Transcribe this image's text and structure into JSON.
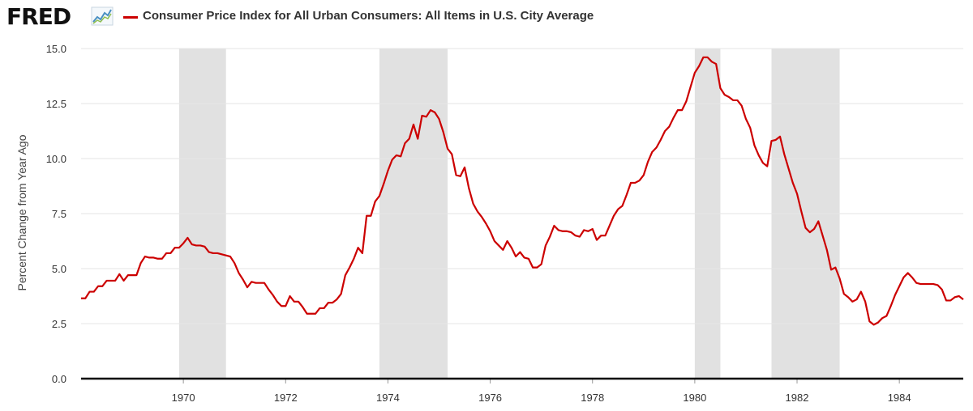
{
  "header": {
    "logo_text": "FRED",
    "logo_icon": "fred-graph-icon"
  },
  "colors": {
    "series": "#cc0000",
    "recession": "#e1e1e1",
    "grid": "#e6e6e6",
    "baseline": "#000000"
  },
  "chart_data": {
    "type": "line",
    "title": "Consumer Price Index for All Urban Consumers: All Items in U.S. City Average",
    "xlabel": "",
    "ylabel": "Percent Change from Year Ago",
    "xlim": [
      "1968-01",
      "1985-04"
    ],
    "ylim": [
      0,
      15
    ],
    "y_ticks": [
      "0.0",
      "2.5",
      "5.0",
      "7.5",
      "10.0",
      "12.5",
      "15.0"
    ],
    "x_ticks": [
      "1970",
      "1972",
      "1974",
      "1976",
      "1978",
      "1980",
      "1982",
      "1984"
    ],
    "grid": true,
    "recessions": [
      [
        "1969-12",
        "1970-11"
      ],
      [
        "1973-11",
        "1975-03"
      ],
      [
        "1980-01",
        "1980-07"
      ],
      [
        "1981-07",
        "1982-11"
      ]
    ],
    "series": [
      {
        "name": "Consumer Price Index for All Urban Consumers: All Items in U.S. City Average",
        "points": [
          [
            "1968-01",
            3.65
          ],
          [
            "1968-02",
            3.65
          ],
          [
            "1968-03",
            3.95
          ],
          [
            "1968-04",
            3.95
          ],
          [
            "1968-05",
            4.2
          ],
          [
            "1968-06",
            4.2
          ],
          [
            "1968-07",
            4.45
          ],
          [
            "1968-08",
            4.45
          ],
          [
            "1968-09",
            4.45
          ],
          [
            "1968-10",
            4.75
          ],
          [
            "1968-11",
            4.45
          ],
          [
            "1968-12",
            4.7
          ],
          [
            "1969-01",
            4.7
          ],
          [
            "1969-02",
            4.7
          ],
          [
            "1969-03",
            5.25
          ],
          [
            "1969-04",
            5.55
          ],
          [
            "1969-05",
            5.5
          ],
          [
            "1969-06",
            5.5
          ],
          [
            "1969-07",
            5.45
          ],
          [
            "1969-08",
            5.45
          ],
          [
            "1969-09",
            5.7
          ],
          [
            "1969-10",
            5.7
          ],
          [
            "1969-11",
            5.95
          ],
          [
            "1969-12",
            5.95
          ],
          [
            "1970-01",
            6.15
          ],
          [
            "1970-02",
            6.4
          ],
          [
            "1970-03",
            6.1
          ],
          [
            "1970-04",
            6.05
          ],
          [
            "1970-05",
            6.05
          ],
          [
            "1970-06",
            6.0
          ],
          [
            "1970-07",
            5.75
          ],
          [
            "1970-08",
            5.7
          ],
          [
            "1970-09",
            5.7
          ],
          [
            "1970-10",
            5.65
          ],
          [
            "1970-11",
            5.6
          ],
          [
            "1970-12",
            5.55
          ],
          [
            "1971-01",
            5.25
          ],
          [
            "1971-02",
            4.8
          ],
          [
            "1971-03",
            4.5
          ],
          [
            "1971-04",
            4.15
          ],
          [
            "1971-05",
            4.4
          ],
          [
            "1971-06",
            4.35
          ],
          [
            "1971-07",
            4.35
          ],
          [
            "1971-08",
            4.35
          ],
          [
            "1971-09",
            4.05
          ],
          [
            "1971-10",
            3.8
          ],
          [
            "1971-11",
            3.5
          ],
          [
            "1971-12",
            3.3
          ],
          [
            "1972-01",
            3.3
          ],
          [
            "1972-02",
            3.75
          ],
          [
            "1972-03",
            3.5
          ],
          [
            "1972-04",
            3.5
          ],
          [
            "1972-05",
            3.25
          ],
          [
            "1972-06",
            2.95
          ],
          [
            "1972-07",
            2.95
          ],
          [
            "1972-08",
            2.95
          ],
          [
            "1972-09",
            3.2
          ],
          [
            "1972-10",
            3.2
          ],
          [
            "1972-11",
            3.45
          ],
          [
            "1972-12",
            3.45
          ],
          [
            "1973-01",
            3.6
          ],
          [
            "1973-02",
            3.85
          ],
          [
            "1973-03",
            4.7
          ],
          [
            "1973-04",
            5.05
          ],
          [
            "1973-05",
            5.45
          ],
          [
            "1973-06",
            5.95
          ],
          [
            "1973-07",
            5.7
          ],
          [
            "1973-08",
            7.4
          ],
          [
            "1973-09",
            7.4
          ],
          [
            "1973-10",
            8.05
          ],
          [
            "1973-11",
            8.3
          ],
          [
            "1973-12",
            8.85
          ],
          [
            "1974-01",
            9.45
          ],
          [
            "1974-02",
            9.95
          ],
          [
            "1974-03",
            10.15
          ],
          [
            "1974-04",
            10.1
          ],
          [
            "1974-05",
            10.7
          ],
          [
            "1974-06",
            10.9
          ],
          [
            "1974-07",
            11.55
          ],
          [
            "1974-08",
            10.9
          ],
          [
            "1974-09",
            11.95
          ],
          [
            "1974-10",
            11.9
          ],
          [
            "1974-11",
            12.2
          ],
          [
            "1974-12",
            12.1
          ],
          [
            "1975-01",
            11.8
          ],
          [
            "1975-02",
            11.2
          ],
          [
            "1975-03",
            10.45
          ],
          [
            "1975-04",
            10.2
          ],
          [
            "1975-05",
            9.25
          ],
          [
            "1975-06",
            9.2
          ],
          [
            "1975-07",
            9.6
          ],
          [
            "1975-08",
            8.65
          ],
          [
            "1975-09",
            7.95
          ],
          [
            "1975-10",
            7.6
          ],
          [
            "1975-11",
            7.35
          ],
          [
            "1975-12",
            7.05
          ],
          [
            "1976-01",
            6.7
          ],
          [
            "1976-02",
            6.25
          ],
          [
            "1976-03",
            6.05
          ],
          [
            "1976-04",
            5.85
          ],
          [
            "1976-05",
            6.25
          ],
          [
            "1976-06",
            5.95
          ],
          [
            "1976-07",
            5.55
          ],
          [
            "1976-08",
            5.75
          ],
          [
            "1976-09",
            5.5
          ],
          [
            "1976-10",
            5.45
          ],
          [
            "1976-11",
            5.05
          ],
          [
            "1976-12",
            5.05
          ],
          [
            "1977-01",
            5.2
          ],
          [
            "1977-02",
            6.05
          ],
          [
            "1977-03",
            6.45
          ],
          [
            "1977-04",
            6.95
          ],
          [
            "1977-05",
            6.75
          ],
          [
            "1977-06",
            6.7
          ],
          [
            "1977-07",
            6.7
          ],
          [
            "1977-08",
            6.65
          ],
          [
            "1977-09",
            6.5
          ],
          [
            "1977-10",
            6.45
          ],
          [
            "1977-11",
            6.75
          ],
          [
            "1977-12",
            6.7
          ],
          [
            "1978-01",
            6.8
          ],
          [
            "1978-02",
            6.3
          ],
          [
            "1978-03",
            6.5
          ],
          [
            "1978-04",
            6.5
          ],
          [
            "1978-05",
            6.95
          ],
          [
            "1978-06",
            7.4
          ],
          [
            "1978-07",
            7.7
          ],
          [
            "1978-08",
            7.85
          ],
          [
            "1978-09",
            8.35
          ],
          [
            "1978-10",
            8.9
          ],
          [
            "1978-11",
            8.9
          ],
          [
            "1978-12",
            9.0
          ],
          [
            "1979-01",
            9.25
          ],
          [
            "1979-02",
            9.85
          ],
          [
            "1979-03",
            10.3
          ],
          [
            "1979-04",
            10.5
          ],
          [
            "1979-05",
            10.85
          ],
          [
            "1979-06",
            11.25
          ],
          [
            "1979-07",
            11.45
          ],
          [
            "1979-08",
            11.85
          ],
          [
            "1979-09",
            12.2
          ],
          [
            "1979-10",
            12.2
          ],
          [
            "1979-11",
            12.6
          ],
          [
            "1979-12",
            13.25
          ],
          [
            "1980-01",
            13.9
          ],
          [
            "1980-02",
            14.2
          ],
          [
            "1980-03",
            14.6
          ],
          [
            "1980-04",
            14.6
          ],
          [
            "1980-05",
            14.4
          ],
          [
            "1980-06",
            14.3
          ],
          [
            "1980-07",
            13.2
          ],
          [
            "1980-08",
            12.9
          ],
          [
            "1980-09",
            12.8
          ],
          [
            "1980-10",
            12.65
          ],
          [
            "1980-11",
            12.65
          ],
          [
            "1980-12",
            12.4
          ],
          [
            "1981-01",
            11.8
          ],
          [
            "1981-02",
            11.4
          ],
          [
            "1981-03",
            10.6
          ],
          [
            "1981-04",
            10.15
          ],
          [
            "1981-05",
            9.8
          ],
          [
            "1981-06",
            9.65
          ],
          [
            "1981-07",
            10.8
          ],
          [
            "1981-08",
            10.85
          ],
          [
            "1981-09",
            11.0
          ],
          [
            "1981-10",
            10.2
          ],
          [
            "1981-11",
            9.55
          ],
          [
            "1981-12",
            8.9
          ],
          [
            "1982-01",
            8.4
          ],
          [
            "1982-02",
            7.6
          ],
          [
            "1982-03",
            6.85
          ],
          [
            "1982-04",
            6.65
          ],
          [
            "1982-05",
            6.8
          ],
          [
            "1982-06",
            7.15
          ],
          [
            "1982-07",
            6.5
          ],
          [
            "1982-08",
            5.85
          ],
          [
            "1982-09",
            4.95
          ],
          [
            "1982-10",
            5.05
          ],
          [
            "1982-11",
            4.55
          ],
          [
            "1982-12",
            3.85
          ],
          [
            "1983-01",
            3.7
          ],
          [
            "1983-02",
            3.5
          ],
          [
            "1983-03",
            3.6
          ],
          [
            "1983-04",
            3.95
          ],
          [
            "1983-05",
            3.5
          ],
          [
            "1983-06",
            2.6
          ],
          [
            "1983-07",
            2.45
          ],
          [
            "1983-08",
            2.55
          ],
          [
            "1983-09",
            2.75
          ],
          [
            "1983-10",
            2.85
          ],
          [
            "1983-11",
            3.3
          ],
          [
            "1983-12",
            3.8
          ],
          [
            "1984-01",
            4.2
          ],
          [
            "1984-02",
            4.6
          ],
          [
            "1984-03",
            4.8
          ],
          [
            "1984-04",
            4.6
          ],
          [
            "1984-05",
            4.35
          ],
          [
            "1984-06",
            4.3
          ],
          [
            "1984-07",
            4.3
          ],
          [
            "1984-08",
            4.3
          ],
          [
            "1984-09",
            4.3
          ],
          [
            "1984-10",
            4.25
          ],
          [
            "1984-11",
            4.05
          ],
          [
            "1984-12",
            3.55
          ],
          [
            "1985-01",
            3.55
          ],
          [
            "1985-02",
            3.7
          ],
          [
            "1985-03",
            3.75
          ],
          [
            "1985-04",
            3.6
          ]
        ]
      }
    ]
  }
}
